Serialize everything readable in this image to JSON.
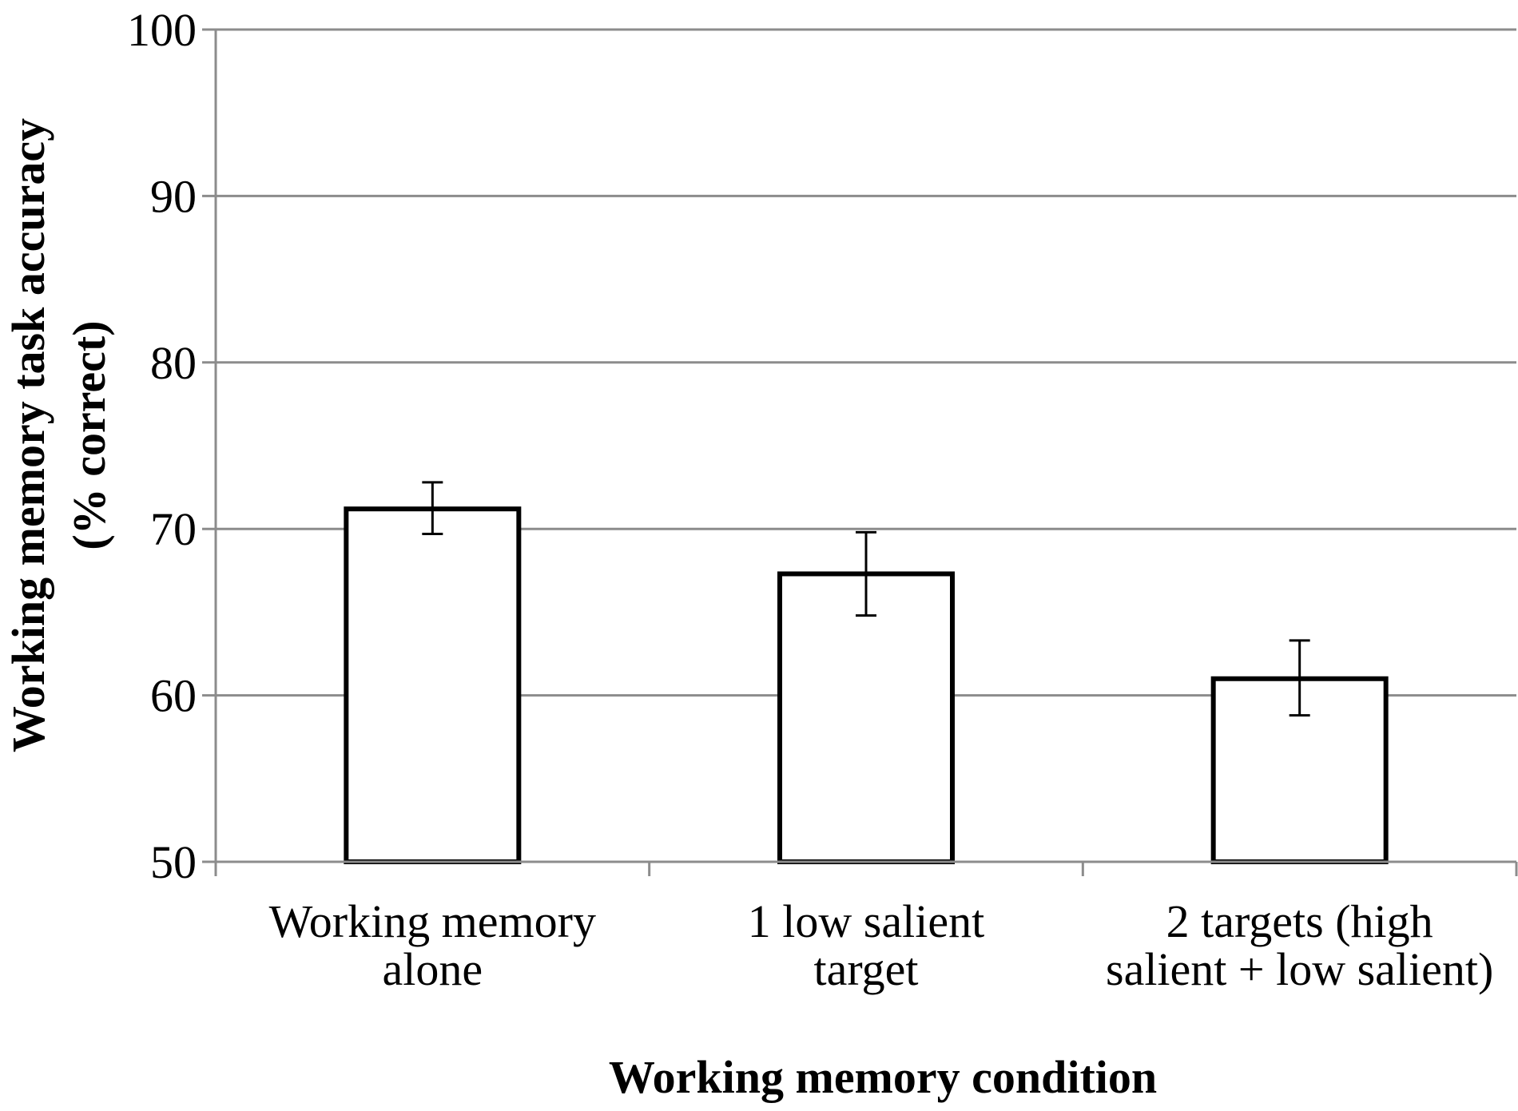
{
  "chart_data": {
    "type": "bar",
    "title": "",
    "xlabel": "Working memory condition",
    "ylabel_lines": [
      "Working memory task accuracy",
      "(% correct)"
    ],
    "categories": [
      [
        "Working memory",
        "alone"
      ],
      [
        "1 low salient",
        "target"
      ],
      [
        "2 targets (high",
        "salient + low salient)"
      ]
    ],
    "values": [
      71.2,
      67.3,
      61.0
    ],
    "error_bars": [
      {
        "low": 69.7,
        "high": 72.8
      },
      {
        "low": 64.8,
        "high": 69.8
      },
      {
        "low": 58.8,
        "high": 63.3
      }
    ],
    "ylim": [
      50,
      100
    ],
    "yticks": [
      50,
      60,
      70,
      80,
      90,
      100
    ],
    "grid": true,
    "legend": "none",
    "bar_fill": "#ffffff",
    "bar_stroke": "#000000",
    "grid_color": "#8c8c8c"
  }
}
